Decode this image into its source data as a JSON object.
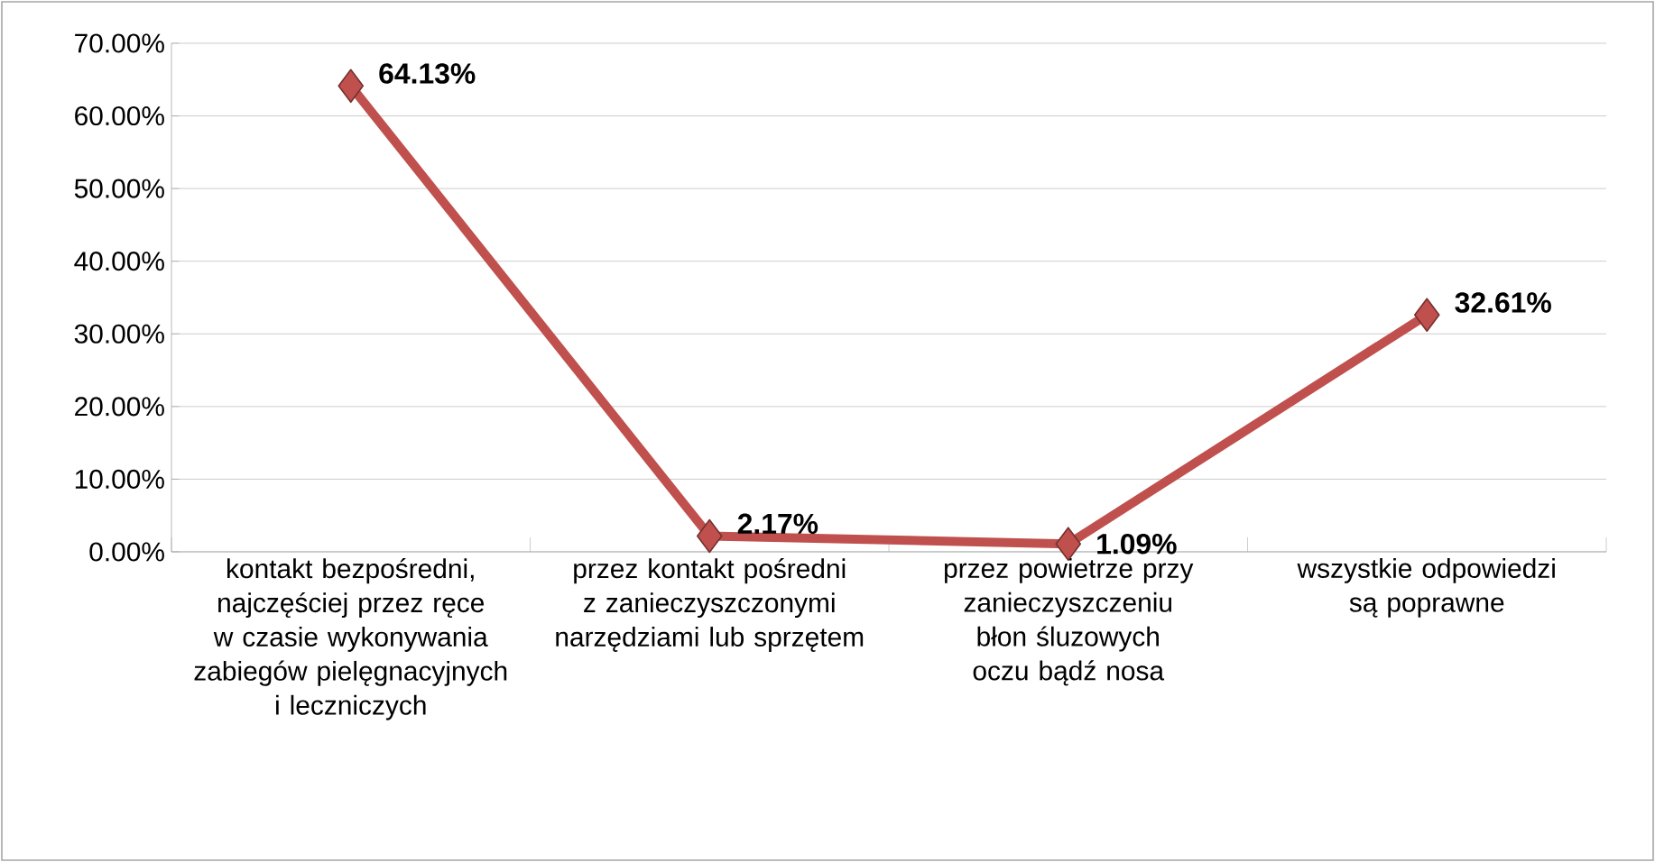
{
  "chart_data": {
    "type": "line",
    "categories": [
      "kontakt bezpośredni, najczęściej przez ręce w czasie wykonywania zabiegów pielęgnacyjnych i leczniczych",
      "przez kontakt pośredni z zanieczyszczonymi narzędziami lub sprzętem",
      "przez powietrze przy zanieczyszczeniu błon śluzowych oczu bądź nosa",
      "wszystkie odpowiedzi są poprawne"
    ],
    "values": [
      64.13,
      2.17,
      1.09,
      32.61
    ],
    "value_labels": [
      "64.13%",
      "2.17%",
      "1.09%",
      "32.61%"
    ],
    "color": "#c0504d",
    "marker": "diamond",
    "grid": "y",
    "ylim": [
      0,
      70
    ],
    "yticks": [
      {
        "value": 0,
        "label": "0.00%"
      },
      {
        "value": 10,
        "label": "10.00%"
      },
      {
        "value": 20,
        "label": "20.00%"
      },
      {
        "value": 30,
        "label": "30.00%"
      },
      {
        "value": 40,
        "label": "40.00%"
      },
      {
        "value": 50,
        "label": "50.00%"
      },
      {
        "value": 60,
        "label": "60.00%"
      },
      {
        "value": 70,
        "label": "70.00%"
      }
    ]
  }
}
